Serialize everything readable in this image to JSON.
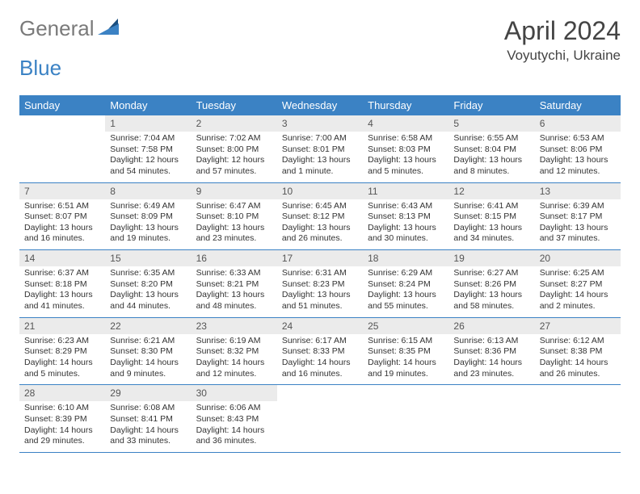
{
  "logo": {
    "text1": "General",
    "text2": "Blue"
  },
  "header": {
    "month_title": "April 2024",
    "location": "Voyutychi, Ukraine"
  },
  "colors": {
    "header_bg": "#3b82c4",
    "header_text": "#ffffff",
    "daynum_bg": "#ebebeb",
    "daynum_text": "#555555",
    "body_text": "#333333",
    "divider": "#3b82c4"
  },
  "day_names": [
    "Sunday",
    "Monday",
    "Tuesday",
    "Wednesday",
    "Thursday",
    "Friday",
    "Saturday"
  ],
  "weeks": [
    [
      {
        "num": "",
        "sunrise": "",
        "sunset": "",
        "daylight": ""
      },
      {
        "num": "1",
        "sunrise": "Sunrise: 7:04 AM",
        "sunset": "Sunset: 7:58 PM",
        "daylight": "Daylight: 12 hours and 54 minutes."
      },
      {
        "num": "2",
        "sunrise": "Sunrise: 7:02 AM",
        "sunset": "Sunset: 8:00 PM",
        "daylight": "Daylight: 12 hours and 57 minutes."
      },
      {
        "num": "3",
        "sunrise": "Sunrise: 7:00 AM",
        "sunset": "Sunset: 8:01 PM",
        "daylight": "Daylight: 13 hours and 1 minute."
      },
      {
        "num": "4",
        "sunrise": "Sunrise: 6:58 AM",
        "sunset": "Sunset: 8:03 PM",
        "daylight": "Daylight: 13 hours and 5 minutes."
      },
      {
        "num": "5",
        "sunrise": "Sunrise: 6:55 AM",
        "sunset": "Sunset: 8:04 PM",
        "daylight": "Daylight: 13 hours and 8 minutes."
      },
      {
        "num": "6",
        "sunrise": "Sunrise: 6:53 AM",
        "sunset": "Sunset: 8:06 PM",
        "daylight": "Daylight: 13 hours and 12 minutes."
      }
    ],
    [
      {
        "num": "7",
        "sunrise": "Sunrise: 6:51 AM",
        "sunset": "Sunset: 8:07 PM",
        "daylight": "Daylight: 13 hours and 16 minutes."
      },
      {
        "num": "8",
        "sunrise": "Sunrise: 6:49 AM",
        "sunset": "Sunset: 8:09 PM",
        "daylight": "Daylight: 13 hours and 19 minutes."
      },
      {
        "num": "9",
        "sunrise": "Sunrise: 6:47 AM",
        "sunset": "Sunset: 8:10 PM",
        "daylight": "Daylight: 13 hours and 23 minutes."
      },
      {
        "num": "10",
        "sunrise": "Sunrise: 6:45 AM",
        "sunset": "Sunset: 8:12 PM",
        "daylight": "Daylight: 13 hours and 26 minutes."
      },
      {
        "num": "11",
        "sunrise": "Sunrise: 6:43 AM",
        "sunset": "Sunset: 8:13 PM",
        "daylight": "Daylight: 13 hours and 30 minutes."
      },
      {
        "num": "12",
        "sunrise": "Sunrise: 6:41 AM",
        "sunset": "Sunset: 8:15 PM",
        "daylight": "Daylight: 13 hours and 34 minutes."
      },
      {
        "num": "13",
        "sunrise": "Sunrise: 6:39 AM",
        "sunset": "Sunset: 8:17 PM",
        "daylight": "Daylight: 13 hours and 37 minutes."
      }
    ],
    [
      {
        "num": "14",
        "sunrise": "Sunrise: 6:37 AM",
        "sunset": "Sunset: 8:18 PM",
        "daylight": "Daylight: 13 hours and 41 minutes."
      },
      {
        "num": "15",
        "sunrise": "Sunrise: 6:35 AM",
        "sunset": "Sunset: 8:20 PM",
        "daylight": "Daylight: 13 hours and 44 minutes."
      },
      {
        "num": "16",
        "sunrise": "Sunrise: 6:33 AM",
        "sunset": "Sunset: 8:21 PM",
        "daylight": "Daylight: 13 hours and 48 minutes."
      },
      {
        "num": "17",
        "sunrise": "Sunrise: 6:31 AM",
        "sunset": "Sunset: 8:23 PM",
        "daylight": "Daylight: 13 hours and 51 minutes."
      },
      {
        "num": "18",
        "sunrise": "Sunrise: 6:29 AM",
        "sunset": "Sunset: 8:24 PM",
        "daylight": "Daylight: 13 hours and 55 minutes."
      },
      {
        "num": "19",
        "sunrise": "Sunrise: 6:27 AM",
        "sunset": "Sunset: 8:26 PM",
        "daylight": "Daylight: 13 hours and 58 minutes."
      },
      {
        "num": "20",
        "sunrise": "Sunrise: 6:25 AM",
        "sunset": "Sunset: 8:27 PM",
        "daylight": "Daylight: 14 hours and 2 minutes."
      }
    ],
    [
      {
        "num": "21",
        "sunrise": "Sunrise: 6:23 AM",
        "sunset": "Sunset: 8:29 PM",
        "daylight": "Daylight: 14 hours and 5 minutes."
      },
      {
        "num": "22",
        "sunrise": "Sunrise: 6:21 AM",
        "sunset": "Sunset: 8:30 PM",
        "daylight": "Daylight: 14 hours and 9 minutes."
      },
      {
        "num": "23",
        "sunrise": "Sunrise: 6:19 AM",
        "sunset": "Sunset: 8:32 PM",
        "daylight": "Daylight: 14 hours and 12 minutes."
      },
      {
        "num": "24",
        "sunrise": "Sunrise: 6:17 AM",
        "sunset": "Sunset: 8:33 PM",
        "daylight": "Daylight: 14 hours and 16 minutes."
      },
      {
        "num": "25",
        "sunrise": "Sunrise: 6:15 AM",
        "sunset": "Sunset: 8:35 PM",
        "daylight": "Daylight: 14 hours and 19 minutes."
      },
      {
        "num": "26",
        "sunrise": "Sunrise: 6:13 AM",
        "sunset": "Sunset: 8:36 PM",
        "daylight": "Daylight: 14 hours and 23 minutes."
      },
      {
        "num": "27",
        "sunrise": "Sunrise: 6:12 AM",
        "sunset": "Sunset: 8:38 PM",
        "daylight": "Daylight: 14 hours and 26 minutes."
      }
    ],
    [
      {
        "num": "28",
        "sunrise": "Sunrise: 6:10 AM",
        "sunset": "Sunset: 8:39 PM",
        "daylight": "Daylight: 14 hours and 29 minutes."
      },
      {
        "num": "29",
        "sunrise": "Sunrise: 6:08 AM",
        "sunset": "Sunset: 8:41 PM",
        "daylight": "Daylight: 14 hours and 33 minutes."
      },
      {
        "num": "30",
        "sunrise": "Sunrise: 6:06 AM",
        "sunset": "Sunset: 8:43 PM",
        "daylight": "Daylight: 14 hours and 36 minutes."
      },
      {
        "num": "",
        "sunrise": "",
        "sunset": "",
        "daylight": ""
      },
      {
        "num": "",
        "sunrise": "",
        "sunset": "",
        "daylight": ""
      },
      {
        "num": "",
        "sunrise": "",
        "sunset": "",
        "daylight": ""
      },
      {
        "num": "",
        "sunrise": "",
        "sunset": "",
        "daylight": ""
      }
    ]
  ]
}
